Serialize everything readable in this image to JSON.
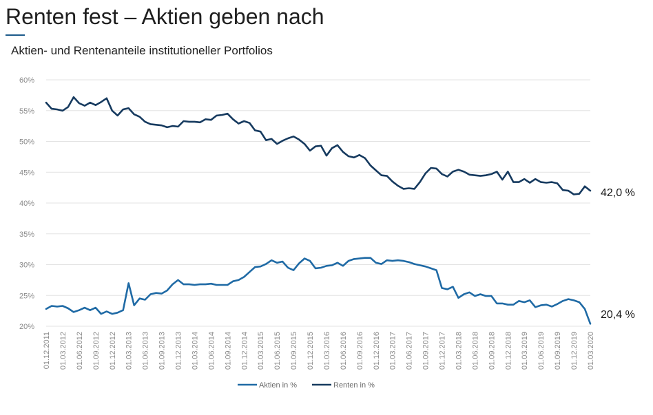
{
  "title": "Renten fest – Aktien geben nach",
  "subtitle": "Aktien- und Rentenanteile institutioneller Portfolios",
  "chart_data": {
    "type": "line",
    "title": "Renten fest – Aktien geben nach",
    "subtitle": "Aktien- und Rentenanteile institutioneller Portfolios",
    "xlabel": "",
    "ylabel": "",
    "ylim": [
      20,
      60
    ],
    "yticks": [
      20,
      25,
      30,
      35,
      40,
      45,
      50,
      55,
      60
    ],
    "ytick_labels": [
      "20%",
      "25%",
      "30%",
      "35%",
      "40%",
      "45%",
      "50%",
      "55%",
      "60%"
    ],
    "x_start": "2011-12",
    "x_end": "2020-03",
    "xtick_labels": [
      "01.12.2011",
      "01.03.2012",
      "01.06.2012",
      "01.09.2012",
      "01.12.2012",
      "01.03.2013",
      "01.06.2013",
      "01.09.2013",
      "01.12.2013",
      "01.03.2014",
      "01.06.2014",
      "01.09.2014",
      "01.12.2014",
      "01.03.2015",
      "01.06.2015",
      "01.09.2015",
      "01.12.2015",
      "01.03.2016",
      "01.06.2016",
      "01.09.2016",
      "01.12.2016",
      "01.03.2017",
      "01.06.2017",
      "01.09.2017",
      "01.12.2017",
      "01.03.2018",
      "01.06.2018",
      "01.09.2018",
      "01.12.2018",
      "01.03.2019",
      "01.06.2019",
      "01.09.2019",
      "01.12.2019",
      "01.03.2020"
    ],
    "grid": true,
    "legend_position": "bottom",
    "series": [
      {
        "name": "Aktien in %",
        "color": "#1f6aa5",
        "end_label": "20,4 %",
        "values": [
          22.8,
          23.3,
          23.2,
          23.3,
          22.9,
          22.3,
          22.6,
          23.0,
          22.6,
          23.0,
          22.0,
          22.4,
          22.0,
          22.2,
          22.6,
          27.0,
          23.4,
          24.5,
          24.3,
          25.2,
          25.4,
          25.3,
          25.8,
          26.8,
          27.5,
          26.8,
          26.8,
          26.7,
          26.8,
          26.8,
          26.9,
          26.7,
          26.7,
          26.7,
          27.3,
          27.5,
          28.0,
          28.8,
          29.6,
          29.7,
          30.1,
          30.7,
          30.3,
          30.5,
          29.5,
          29.1,
          30.2,
          31.0,
          30.6,
          29.4,
          29.5,
          29.8,
          29.9,
          30.3,
          29.8,
          30.6,
          30.9,
          31.0,
          31.1,
          31.1,
          30.3,
          30.1,
          30.7,
          30.6,
          30.7,
          30.6,
          30.4,
          30.1,
          29.9,
          29.7,
          29.4,
          29.1,
          26.2,
          26.0,
          26.4,
          24.6,
          25.2,
          25.5,
          24.9,
          25.2,
          24.9,
          24.9,
          23.7,
          23.7,
          23.5,
          23.5,
          24.1,
          23.9,
          24.2,
          23.1,
          23.4,
          23.5,
          23.2,
          23.6,
          24.1,
          24.4,
          24.2,
          23.9,
          22.8,
          20.4
        ]
      },
      {
        "name": "Renten in %",
        "color": "#163a5f",
        "end_label": "42,0 %",
        "values": [
          56.3,
          55.3,
          55.2,
          55.0,
          55.6,
          57.2,
          56.2,
          55.8,
          56.3,
          55.9,
          56.4,
          57.0,
          55.0,
          54.2,
          55.2,
          55.4,
          54.4,
          54.0,
          53.2,
          52.8,
          52.7,
          52.6,
          52.3,
          52.5,
          52.4,
          53.3,
          53.2,
          53.2,
          53.1,
          53.6,
          53.5,
          54.2,
          54.3,
          54.5,
          53.6,
          52.9,
          53.3,
          53.0,
          51.8,
          51.6,
          50.2,
          50.4,
          49.6,
          50.1,
          50.5,
          50.8,
          50.3,
          49.6,
          48.5,
          49.2,
          49.3,
          47.7,
          48.9,
          49.4,
          48.3,
          47.6,
          47.4,
          47.8,
          47.3,
          46.1,
          45.3,
          44.5,
          44.4,
          43.5,
          42.8,
          42.3,
          42.4,
          42.3,
          43.4,
          44.8,
          45.7,
          45.6,
          44.7,
          44.3,
          45.1,
          45.4,
          45.1,
          44.6,
          44.5,
          44.4,
          44.5,
          44.7,
          45.1,
          43.8,
          45.1,
          43.4,
          43.4,
          43.9,
          43.3,
          43.9,
          43.4,
          43.3,
          43.4,
          43.2,
          42.1,
          42.0,
          41.4,
          41.5,
          42.7,
          42.0
        ]
      }
    ]
  }
}
